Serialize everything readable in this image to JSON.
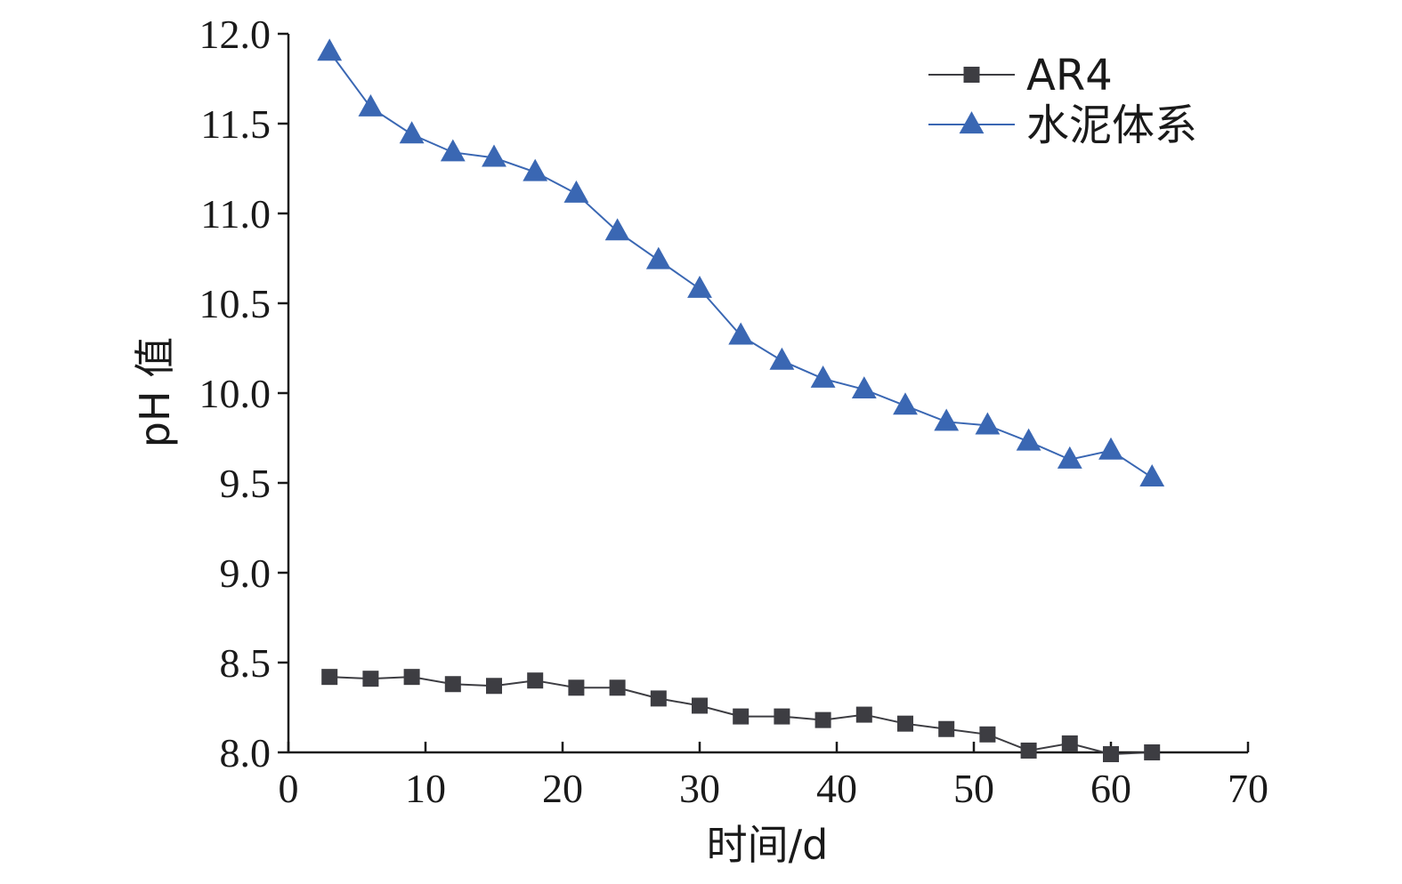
{
  "chart_data": {
    "type": "line",
    "xlabel": "时间/d",
    "ylabel": "pH 值",
    "xlim": [
      0,
      70
    ],
    "ylim": [
      8.0,
      12.0
    ],
    "xticks": [
      "0",
      "10",
      "20",
      "30",
      "40",
      "50",
      "60",
      "70"
    ],
    "yticks": [
      "8.0",
      "8.5",
      "9.0",
      "9.5",
      "10.0",
      "10.5",
      "11.0",
      "11.5",
      "12.0"
    ],
    "grid": false,
    "legend_position": "top-right",
    "x": [
      3,
      6,
      9,
      12,
      15,
      18,
      21,
      24,
      27,
      30,
      33,
      36,
      39,
      42,
      45,
      48,
      51,
      54,
      57,
      60,
      63
    ],
    "series": [
      {
        "name": "AR4",
        "marker": "square",
        "color": "#3d3d42",
        "values": [
          8.42,
          8.41,
          8.42,
          8.38,
          8.37,
          8.4,
          8.36,
          8.36,
          8.3,
          8.26,
          8.2,
          8.2,
          8.18,
          8.21,
          8.16,
          8.13,
          8.1,
          8.01,
          8.05,
          7.99,
          8.0
        ]
      },
      {
        "name": "水泥体系",
        "marker": "triangle",
        "color": "#3a67b3",
        "values": [
          11.9,
          11.59,
          11.44,
          11.34,
          11.31,
          11.23,
          11.11,
          10.9,
          10.74,
          10.58,
          10.32,
          10.18,
          10.08,
          10.02,
          9.93,
          9.84,
          9.82,
          9.73,
          9.63,
          9.68,
          9.53
        ]
      }
    ]
  }
}
